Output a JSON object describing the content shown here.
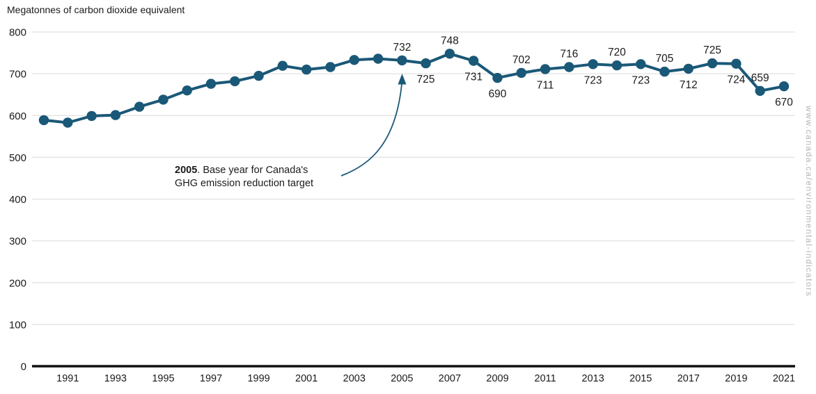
{
  "title": "Megatonnes of carbon dioxide equivalent",
  "watermark": "www.canada.ca/environmental-indicators",
  "annotation": {
    "year_bold": "2005",
    "line1_rest": ". Base year for Canada's",
    "line2": "GHG emission reduction target"
  },
  "colors": {
    "series": "#1a5877",
    "grid": "#e0e0e0",
    "axis": "#111111",
    "text": "#1a1a1a",
    "watermark": "#b5b5b5"
  },
  "chart_data": {
    "type": "line",
    "title": "Megatonnes of carbon dioxide equivalent",
    "x": [
      1990,
      1991,
      1992,
      1993,
      1994,
      1995,
      1996,
      1997,
      1998,
      1999,
      2000,
      2001,
      2002,
      2003,
      2004,
      2005,
      2006,
      2007,
      2008,
      2009,
      2010,
      2011,
      2012,
      2013,
      2014,
      2015,
      2016,
      2017,
      2018,
      2019,
      2020,
      2021
    ],
    "values": [
      589,
      583,
      599,
      601,
      621,
      638,
      660,
      676,
      682,
      695,
      719,
      710,
      716,
      733,
      736,
      732,
      725,
      748,
      731,
      690,
      702,
      711,
      716,
      723,
      720,
      723,
      705,
      712,
      725,
      724,
      659,
      670
    ],
    "ylim": [
      0,
      800
    ],
    "ytick_step": 100,
    "xticks": [
      1991,
      1993,
      1995,
      1997,
      1999,
      2001,
      2003,
      2005,
      2007,
      2009,
      2011,
      2013,
      2015,
      2017,
      2019,
      2021
    ],
    "grid": "horizontal",
    "legend": "none",
    "markers": true,
    "point_labels": [
      {
        "year": 2005,
        "value": 732,
        "position": "above"
      },
      {
        "year": 2006,
        "value": 725,
        "position": "below"
      },
      {
        "year": 2007,
        "value": 748,
        "position": "above"
      },
      {
        "year": 2008,
        "value": 731,
        "position": "below"
      },
      {
        "year": 2009,
        "value": 690,
        "position": "below"
      },
      {
        "year": 2010,
        "value": 702,
        "position": "above"
      },
      {
        "year": 2011,
        "value": 711,
        "position": "below"
      },
      {
        "year": 2012,
        "value": 716,
        "position": "above"
      },
      {
        "year": 2013,
        "value": 723,
        "position": "below"
      },
      {
        "year": 2014,
        "value": 720,
        "position": "above"
      },
      {
        "year": 2015,
        "value": 723,
        "position": "below"
      },
      {
        "year": 2016,
        "value": 705,
        "position": "above"
      },
      {
        "year": 2017,
        "value": 712,
        "position": "below"
      },
      {
        "year": 2018,
        "value": 725,
        "position": "above"
      },
      {
        "year": 2019,
        "value": 724,
        "position": "below"
      },
      {
        "year": 2020,
        "value": 659,
        "position": "above"
      },
      {
        "year": 2021,
        "value": 670,
        "position": "below"
      }
    ]
  }
}
